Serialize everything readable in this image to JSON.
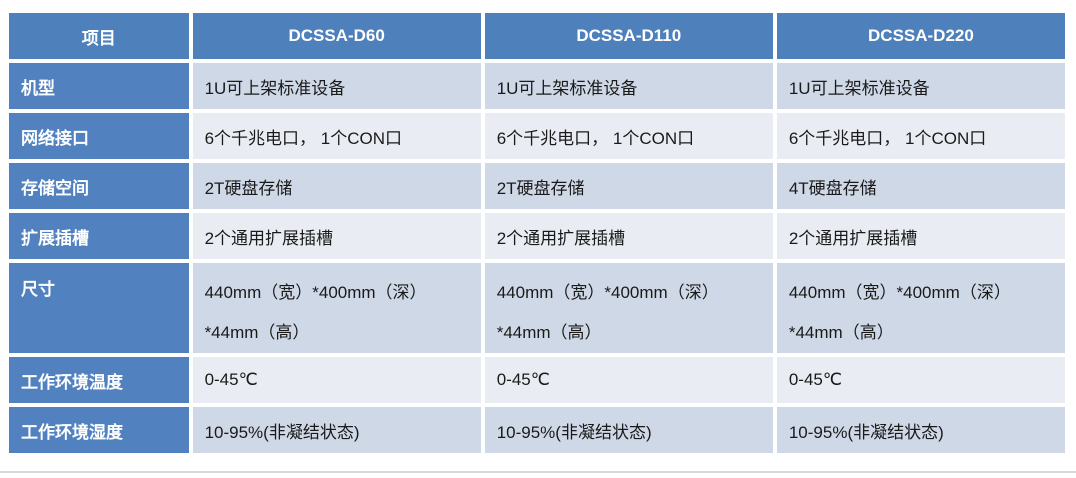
{
  "colors": {
    "header_bg": "#4E80BC",
    "row_label_bg": "#5182BF",
    "band_dark": "#CFD8E7",
    "band_light": "#E9EDF3",
    "header_text": "#FFFFFF",
    "cell_text": "#1A1A1A",
    "gutter": "#FFFFFF",
    "bottom_rule": "#D8D8D8"
  },
  "table": {
    "columns": [
      "项目",
      "DCSSA-D60",
      "DCSSA-D110",
      "DCSSA-D220"
    ],
    "rows": [
      {
        "label": "机型",
        "values": [
          "1U可上架标准设备",
          "1U可上架标准设备",
          "1U可上架标准设备"
        ]
      },
      {
        "label": "网络接口",
        "values": [
          "6个千兆电口， 1个CON口",
          "6个千兆电口， 1个CON口",
          "6个千兆电口， 1个CON口"
        ]
      },
      {
        "label": "存储空间",
        "values": [
          "2T硬盘存储",
          "2T硬盘存储",
          "4T硬盘存储"
        ]
      },
      {
        "label": "扩展插槽",
        "values": [
          "2个通用扩展插槽",
          "2个通用扩展插槽",
          "2个通用扩展插槽"
        ]
      },
      {
        "label": "尺寸",
        "values": [
          "440mm（宽）*400mm（深）\n*44mm（高）",
          "440mm（宽）*400mm（深）\n*44mm（高）",
          "440mm（宽）*400mm（深）\n*44mm（高）"
        ]
      },
      {
        "label": "工作环境温度",
        "values": [
          "0-45℃",
          "0-45℃",
          "0-45℃"
        ]
      },
      {
        "label": "工作环境湿度",
        "values": [
          "10-95%(非凝结状态)",
          "10-95%(非凝结状态)",
          "10-95%(非凝结状态)"
        ]
      }
    ]
  }
}
